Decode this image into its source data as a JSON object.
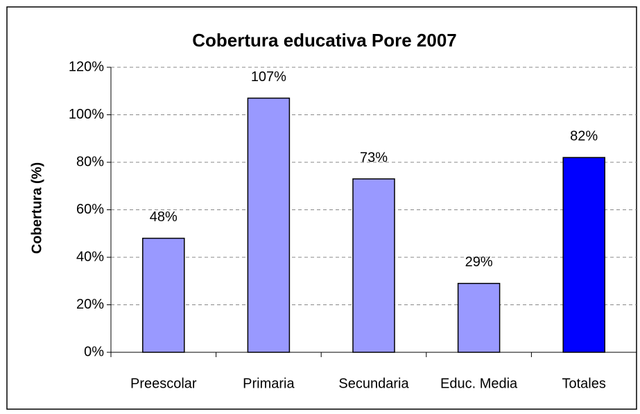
{
  "chart_data": {
    "type": "bar",
    "title": "Cobertura educativa Pore 2007",
    "y_axis_label": "Cobertura (%)",
    "categories": [
      "Preescolar",
      "Primaria",
      "Secundaria",
      "Educ. Media",
      "Totales"
    ],
    "values": [
      48,
      107,
      73,
      29,
      82
    ],
    "value_labels": [
      "48%",
      "107%",
      "73%",
      "29%",
      "82%"
    ],
    "colors": [
      "#9999ff",
      "#9999ff",
      "#9999ff",
      "#9999ff",
      "#0000ff"
    ],
    "ylim": [
      0,
      120
    ],
    "yticks": [
      {
        "value": 0,
        "label": "0%"
      },
      {
        "value": 20,
        "label": "20%"
      },
      {
        "value": 40,
        "label": "40%"
      },
      {
        "value": 60,
        "label": "60%"
      },
      {
        "value": 80,
        "label": "80%"
      },
      {
        "value": 100,
        "label": "100%"
      },
      {
        "value": 120,
        "label": "120%"
      }
    ],
    "grid": true
  }
}
